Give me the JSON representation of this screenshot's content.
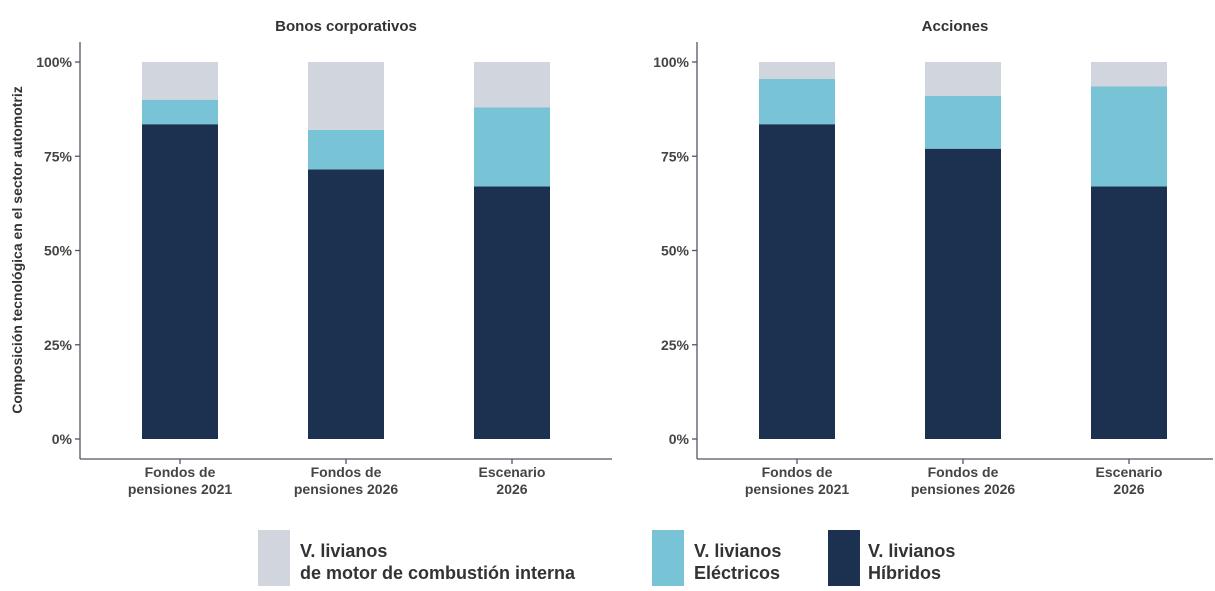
{
  "chart_data": [
    {
      "type": "stacked_bar",
      "title": "Bonos corporativos",
      "ylabel": "Composición tecnológica en el sector automotriz",
      "categories": [
        "Fondos de\npensiones 2021",
        "Fondos de\npensiones 2026",
        "Escenario\n2026"
      ],
      "series": [
        {
          "name": "V. livianos\nHíbridos",
          "color": "#1c3150",
          "values": [
            83.5,
            71.5,
            67
          ]
        },
        {
          "name": "V. livianos\nEléctricos",
          "color": "#78c3d6",
          "values": [
            6.5,
            10.5,
            21
          ]
        },
        {
          "name": "V. livianos\nde motor de combustión interna",
          "color": "#d0d5de",
          "values": [
            10,
            18,
            12
          ]
        }
      ],
      "ylim": [
        0,
        100
      ],
      "yticks": [
        {
          "value": 0,
          "label": "0%"
        },
        {
          "value": 25,
          "label": "25%"
        },
        {
          "value": 50,
          "label": "50%"
        },
        {
          "value": 75,
          "label": "75%"
        },
        {
          "value": 100,
          "label": "100%"
        }
      ]
    },
    {
      "type": "stacked_bar",
      "title": "Acciones",
      "categories": [
        "Fondos de\npensiones 2021",
        "Fondos de\npensiones 2026",
        "Escenario\n2026"
      ],
      "series": [
        {
          "color": "#1c3150",
          "values": [
            83.5,
            77,
            67
          ]
        },
        {
          "color": "#78c3d6",
          "values": [
            12,
            14,
            26.5
          ]
        },
        {
          "color": "#d0d5de",
          "values": [
            4.5,
            9,
            6.5
          ]
        }
      ],
      "ylim": [
        0,
        100
      ],
      "yticks": [
        {
          "value": 0,
          "label": "0%"
        },
        {
          "value": 25,
          "label": "25%"
        },
        {
          "value": 50,
          "label": "50%"
        },
        {
          "value": 75,
          "label": "75%"
        },
        {
          "value": 100,
          "label": "100%"
        }
      ]
    }
  ]
}
